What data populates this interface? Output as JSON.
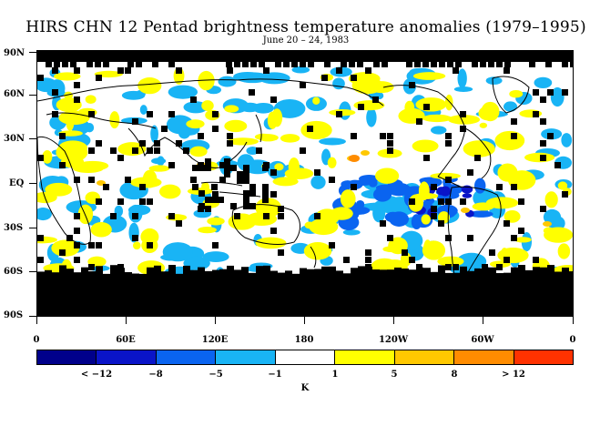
{
  "title": "HIRS CHN 12 Pentad brightness temperature anomalies (1979–1995)",
  "subtitle": "June 20 – 24, 1983",
  "y_axis": {
    "labels": [
      "90N",
      "60N",
      "30N",
      "EQ",
      "30S",
      "60S",
      "90S"
    ]
  },
  "x_axis": {
    "labels": [
      "0",
      "60E",
      "120E",
      "180",
      "120W",
      "60W",
      "0"
    ]
  },
  "colorbar": {
    "colors": [
      "#00008b",
      "#0a14c8",
      "#0a64f0",
      "#19b4f5",
      "#ffffff",
      "#ffff00",
      "#ffc800",
      "#ff8c00",
      "#ff3200"
    ],
    "labels": [
      "< −12",
      "−8",
      "−5",
      "−1",
      "1",
      "5",
      "8",
      "> 12"
    ],
    "unit": "K"
  },
  "legend_colors": {
    "missing": "#000000",
    "coast": "#000000"
  }
}
